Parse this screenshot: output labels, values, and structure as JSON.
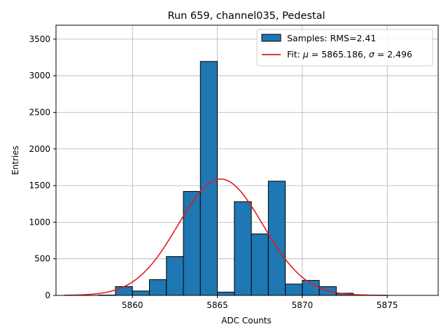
{
  "chart_data": {
    "type": "bar",
    "title": "Run 659, channel035, Pedestal",
    "xlabel": "ADC Counts",
    "ylabel": "Entries",
    "xlim": [
      5855.5,
      5878.0
    ],
    "ylim": [
      0,
      3690
    ],
    "xticks": [
      5860,
      5865,
      5870,
      5875
    ],
    "yticks": [
      0,
      500,
      1000,
      1500,
      2000,
      2500,
      3000,
      3500
    ],
    "grid": true,
    "legend_position": "top-right",
    "histogram": {
      "name": "Samples: RMS=2.41",
      "bin_width": 1,
      "bin_edges_start": 5856,
      "values": [
        0,
        0,
        5,
        120,
        60,
        215,
        530,
        1420,
        3195,
        45,
        1280,
        840,
        1560,
        155,
        205,
        120,
        30,
        5,
        0,
        0,
        0
      ],
      "color": "#1f77b4"
    },
    "fit": {
      "name_prefix": "Fit: ",
      "name_mu": "μ",
      "name_mid": " = 5865.186, ",
      "name_sigma": "σ",
      "name_suffix": " = 2.496",
      "mu": 5865.186,
      "sigma": 2.496,
      "amplitude": 1590,
      "x_range": [
        5856,
        5875
      ],
      "color": "#e31a1c"
    }
  }
}
